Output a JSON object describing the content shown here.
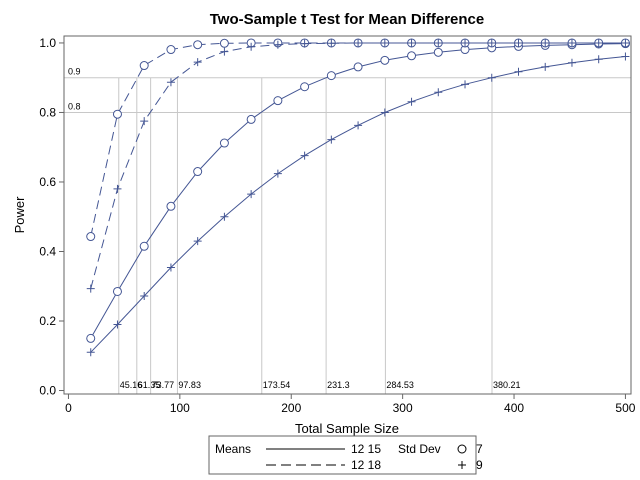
{
  "chart_data": {
    "type": "line",
    "title": "Two-Sample t Test for Mean Difference",
    "xlabel": "Total Sample Size",
    "ylabel": "Power",
    "xlim": [
      -4,
      505
    ],
    "ylim": [
      -0.01,
      1.02
    ],
    "x_ticks": [
      0,
      100,
      200,
      300,
      400,
      500
    ],
    "y_ticks": [
      "0.0",
      "0.2",
      "0.4",
      "0.6",
      "0.8",
      "1.0"
    ],
    "reference_lines_y": [
      {
        "value": 0.9,
        "label": "0.9"
      },
      {
        "value": 0.8,
        "label": "0.8"
      }
    ],
    "reference_lines_x": [
      {
        "value": 45.16,
        "label": "45.16"
      },
      {
        "value": 61.35,
        "label": "61.35"
      },
      {
        "value": 73.77,
        "label": "73.77"
      },
      {
        "value": 97.83,
        "label": "97.83"
      },
      {
        "value": 173.54,
        "label": "173.54"
      },
      {
        "value": 231.3,
        "label": "231.3"
      },
      {
        "value": 284.53,
        "label": "284.53"
      },
      {
        "value": 380.21,
        "label": "380.21"
      }
    ],
    "x": [
      20,
      44,
      68,
      92,
      116,
      140,
      164,
      188,
      212,
      236,
      260,
      284,
      308,
      332,
      356,
      380,
      404,
      428,
      452,
      476,
      500
    ],
    "series": [
      {
        "name": "Means 12 15, Std Dev 7",
        "means": "12 15",
        "std_dev": "7",
        "dash": "solid",
        "marker": "circle",
        "values": [
          0.15,
          0.285,
          0.415,
          0.53,
          0.63,
          0.712,
          0.78,
          0.834,
          0.874,
          0.906,
          0.931,
          0.95,
          0.963,
          0.973,
          0.981,
          0.986,
          0.99,
          0.993,
          0.995,
          0.997,
          0.998
        ]
      },
      {
        "name": "Means 12 15, Std Dev 9",
        "means": "12 15",
        "std_dev": "9",
        "dash": "solid",
        "marker": "plus",
        "values": [
          0.11,
          0.19,
          0.272,
          0.354,
          0.43,
          0.5,
          0.565,
          0.624,
          0.676,
          0.722,
          0.763,
          0.8,
          0.831,
          0.858,
          0.881,
          0.9,
          0.917,
          0.931,
          0.943,
          0.953,
          0.961
        ]
      },
      {
        "name": "Means 12 18, Std Dev 7",
        "means": "12 18",
        "std_dev": "7",
        "dash": "dashed",
        "marker": "circle",
        "values": [
          0.443,
          0.795,
          0.935,
          0.981,
          0.995,
          0.999,
          1.0,
          1.0,
          1.0,
          1.0,
          1.0,
          1.0,
          1.0,
          1.0,
          1.0,
          1.0,
          1.0,
          1.0,
          1.0,
          1.0,
          1.0
        ]
      },
      {
        "name": "Means 12 18, Std Dev 9",
        "means": "12 18",
        "std_dev": "9",
        "dash": "dashed",
        "marker": "plus",
        "values": [
          0.293,
          0.58,
          0.775,
          0.887,
          0.945,
          0.975,
          0.989,
          0.995,
          0.998,
          0.999,
          1.0,
          1.0,
          1.0,
          1.0,
          1.0,
          1.0,
          1.0,
          1.0,
          1.0,
          1.0,
          1.0
        ]
      }
    ],
    "legend": {
      "placement": "bottom",
      "means_title": "Means",
      "means_entries": [
        {
          "label": "12 15",
          "dash": "solid"
        },
        {
          "label": "12 18",
          "dash": "dashed"
        }
      ],
      "std_title": "Std Dev",
      "std_entries": [
        {
          "label": "7",
          "marker": "circle"
        },
        {
          "label": "9",
          "marker": "plus"
        }
      ]
    },
    "colors": {
      "series": "#445694",
      "reference": "#c8c8c8",
      "frame": "#666666",
      "text": "#000000"
    }
  }
}
